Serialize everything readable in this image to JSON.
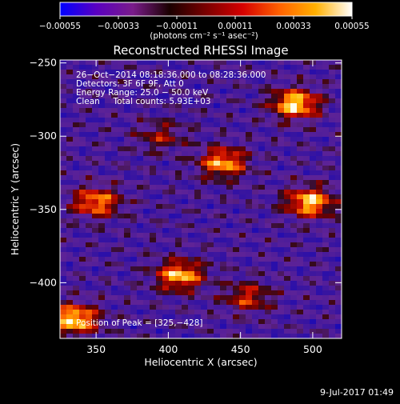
{
  "footer": {
    "date": "9-Jul-2017 01:49"
  },
  "chart_data": {
    "type": "heatmap",
    "title": "Reconstructed RHESSI Image",
    "xlabel": "Heliocentric X (arcsec)",
    "ylabel": "Heliocentric Y (arcsec)",
    "xlim": [
      325,
      520
    ],
    "ylim": [
      -438,
      -248
    ],
    "x_ticks": [
      350,
      400,
      450,
      500
    ],
    "x_tick_labels": [
      "350",
      "400",
      "450",
      "500"
    ],
    "y_ticks": [
      -250,
      -300,
      -350,
      -400
    ],
    "y_tick_labels": [
      "−250",
      "−300",
      "−350",
      "−400"
    ],
    "colorbar": {
      "tick_values": [
        -0.00055,
        -0.00033,
        -0.00011,
        0.00011,
        0.00033,
        0.00055
      ],
      "tick_labels": [
        "−0.00055",
        "−0.00033",
        "−0.00011",
        "0.00011",
        "0.00033",
        "0.00055"
      ],
      "unit_label": "(photons cm⁻² s⁻¹ asec⁻²)",
      "colors": [
        "#0000ff",
        "#5a00c0",
        "#7a1c8a",
        "#1a0000",
        "#7a0000",
        "#d60000",
        "#ff6000",
        "#ffb000",
        "#ffffff"
      ]
    },
    "annotations": [
      "26−Oct−2014 08:18:36.000 to 08:28:36.000",
      "Detectors: 3F 6F 9F, Att 0",
      "Energy Range: 25.0 − 50.0 keV",
      "Clean     Total counts: 5.93E+03"
    ],
    "peak_label": "Position of Peak = [325,−428]",
    "sources": [
      {
        "x": 488,
        "y": -278,
        "intensity": 1.0
      },
      {
        "x": 438,
        "y": -318,
        "intensity": 0.85
      },
      {
        "x": 350,
        "y": -345,
        "intensity": 0.8
      },
      {
        "x": 498,
        "y": -345,
        "intensity": 0.95
      },
      {
        "x": 408,
        "y": -395,
        "intensity": 0.9
      },
      {
        "x": 335,
        "y": -425,
        "intensity": 1.0
      },
      {
        "x": 455,
        "y": -410,
        "intensity": 0.55
      },
      {
        "x": 395,
        "y": -300,
        "intensity": 0.4
      }
    ]
  }
}
